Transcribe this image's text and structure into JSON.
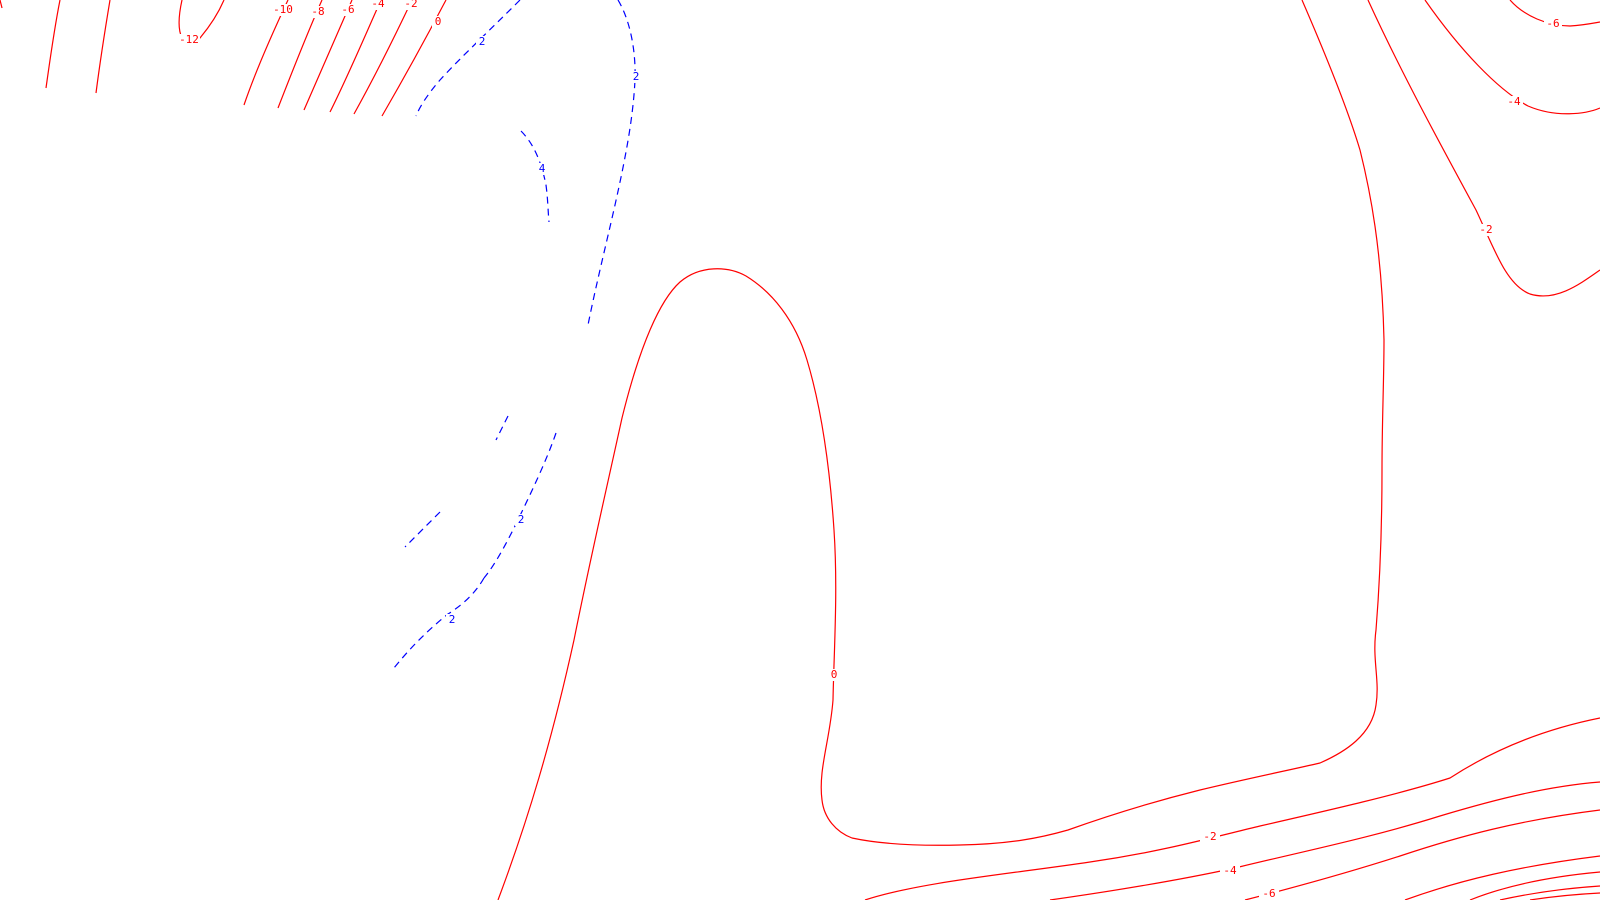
{
  "colors": {
    "negative": "#ff0000",
    "positive": "#0000ff",
    "background": "#ffffff"
  },
  "contour_labels": {
    "n12": "-12",
    "n10": "-10",
    "n8": "-8",
    "n6_top": "-6",
    "n4_top": "-4",
    "n2_top": "-2",
    "zero_top": "0",
    "p2_top": "2",
    "p2_arc": "2",
    "p4": "4",
    "p2_mid": "2",
    "p2_low": "2",
    "zero_mid": "0",
    "n6_right": "-6",
    "n4_right": "-4",
    "n2_right": "-2",
    "n2_bottom": "-2",
    "n4_bottom": "-4",
    "n6_bottom": "-6"
  }
}
